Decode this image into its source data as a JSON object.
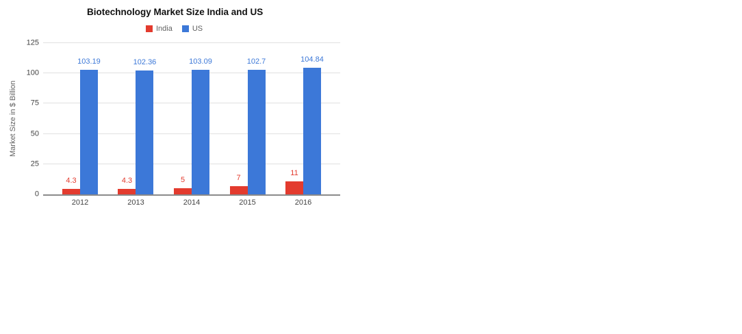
{
  "chart_data": {
    "type": "bar",
    "title": "Biotechnology Market Size India and US",
    "xlabel": "",
    "ylabel": "Market Size in $ Billion",
    "categories": [
      "2012",
      "2013",
      "2014",
      "2015",
      "2016"
    ],
    "series": [
      {
        "name": "India",
        "color": "#e33b2e",
        "values": [
          4.3,
          4.3,
          5,
          7,
          11
        ]
      },
      {
        "name": "US",
        "color": "#3c78d8",
        "values": [
          103.19,
          102.36,
          103.09,
          102.7,
          104.84
        ]
      }
    ],
    "ylim": [
      0,
      125
    ],
    "yticks": [
      0,
      25,
      50,
      75,
      100,
      125
    ],
    "grid": true,
    "legend_position": "top",
    "value_labels": true
  },
  "colors": {
    "grid": "#e0e0e0",
    "baseline": "#8a8a8a",
    "axis_text": "#444444",
    "legend_text": "#616161",
    "title_text": "#111111"
  }
}
